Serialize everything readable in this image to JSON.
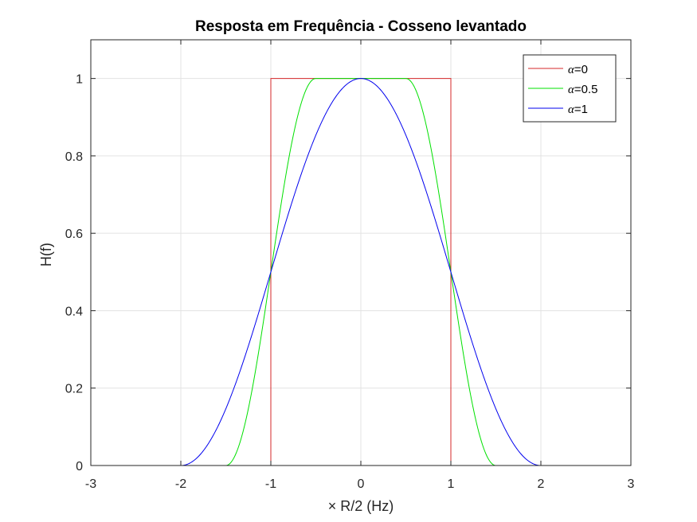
{
  "chart_data": {
    "type": "line",
    "title": "Resposta em Frequência - Cosseno levantado",
    "xlabel": "× R/2 (Hz)",
    "ylabel": "H(f)",
    "xlim": [
      -3,
      3
    ],
    "ylim": [
      0,
      1.1
    ],
    "xticks": [
      -3,
      -2,
      -1,
      0,
      1,
      2,
      3
    ],
    "yticks": [
      0,
      0.2,
      0.4,
      0.6,
      0.8,
      1
    ],
    "xtick_labels": [
      "-3",
      "-2",
      "-1",
      "0",
      "1",
      "2",
      "3"
    ],
    "ytick_labels": [
      "0",
      "0.2",
      "0.4",
      "0.6",
      "0.8",
      "1"
    ],
    "grid": true,
    "legend_position": "top-right",
    "series": [
      {
        "name": "α=0",
        "legend_symbol": "α",
        "legend_value": "=0",
        "color": "#d62728",
        "alpha": 0,
        "x": [
          -3,
          -1.0,
          -1.0,
          1.0,
          1.0,
          3
        ],
        "y": [
          0,
          0,
          1,
          1,
          0,
          0
        ]
      },
      {
        "name": "α=0.5",
        "legend_symbol": "α",
        "legend_value": "=0.5",
        "color": "#00e000",
        "alpha": 0.5,
        "x": [
          -3,
          -1.5,
          -1.25,
          -1.0,
          -0.75,
          -0.5,
          0.5,
          0.75,
          1.0,
          1.25,
          1.5,
          3
        ],
        "y": [
          0,
          0,
          0.146,
          0.5,
          0.854,
          1,
          1,
          0.854,
          0.5,
          0.146,
          0,
          0
        ]
      },
      {
        "name": "α=1",
        "legend_symbol": "α",
        "legend_value": "=1",
        "color": "#0000ee",
        "alpha": 1,
        "x": [
          -3,
          -2,
          -1.5,
          -1,
          -0.5,
          0,
          0.5,
          1,
          1.5,
          2,
          3
        ],
        "y": [
          0,
          0,
          0.146,
          0.5,
          0.854,
          1,
          0.854,
          0.5,
          0.146,
          0,
          0
        ]
      }
    ]
  }
}
